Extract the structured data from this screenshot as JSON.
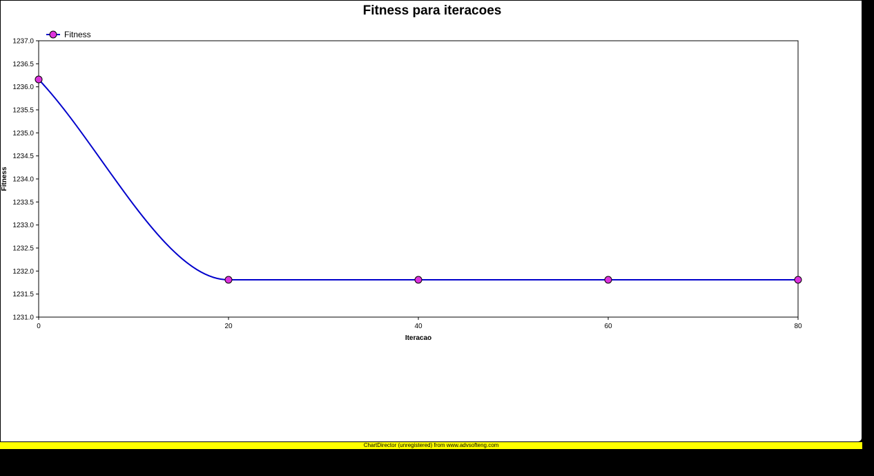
{
  "chart_data": {
    "type": "line",
    "title": "Fitness para iteracoes",
    "xlabel": "Iteracao",
    "ylabel": "Fitness",
    "xlim": [
      0,
      80
    ],
    "ylim": [
      1231.0,
      1237.0
    ],
    "x_ticks": [
      "0",
      "20",
      "40",
      "60",
      "80"
    ],
    "x_tick_values": [
      0,
      20,
      40,
      60,
      80
    ],
    "y_ticks": [
      "1231.0",
      "1231.5",
      "1232.0",
      "1232.5",
      "1233.0",
      "1233.5",
      "1234.0",
      "1234.5",
      "1235.0",
      "1235.5",
      "1236.0",
      "1236.5",
      "1237.0"
    ],
    "y_tick_values": [
      1231.0,
      1231.5,
      1232.0,
      1232.5,
      1233.0,
      1233.5,
      1234.0,
      1234.5,
      1235.0,
      1235.5,
      1236.0,
      1236.5,
      1237.0
    ],
    "grid": false,
    "legend_position": "top-left",
    "series": [
      {
        "name": "Fitness",
        "x": [
          0,
          20,
          40,
          60,
          80
        ],
        "y": [
          1236.16,
          1231.81,
          1231.81,
          1231.81,
          1231.81
        ],
        "line_color": "#0000cc",
        "marker_color": "#dd33dd"
      }
    ]
  },
  "watermark": "ChartDirector (unregistered) from www.advsofteng.com"
}
